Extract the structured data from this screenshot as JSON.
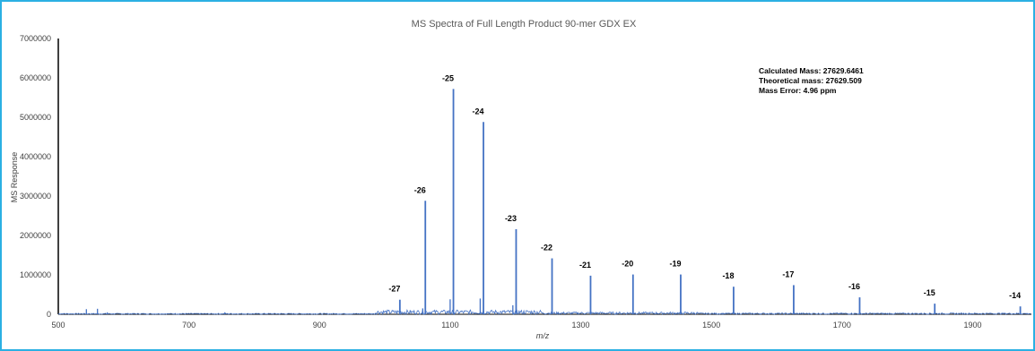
{
  "chart_data": {
    "type": "line",
    "title": "MS Spectra of Full Length Product 90-mer GDX EX",
    "xlabel": "m/z",
    "ylabel": "MS Response",
    "xlim": [
      500,
      1990
    ],
    "ylim": [
      0,
      7000000
    ],
    "x_ticks": [
      "500",
      "700",
      "900",
      "1100",
      "1300",
      "1500",
      "1700",
      "1900"
    ],
    "y_ticks": [
      "0",
      "1000000",
      "2000000",
      "3000000",
      "4000000",
      "5000000",
      "6000000",
      "7000000"
    ],
    "series_color": "#4472c4",
    "peaks": [
      {
        "label": "-27",
        "x": 1023,
        "y": 370000
      },
      {
        "label": "-26",
        "x": 1062,
        "y": 2880000
      },
      {
        "label": "-25",
        "x": 1105,
        "y": 5720000
      },
      {
        "label": "-24",
        "x": 1151,
        "y": 4880000
      },
      {
        "label": "-23",
        "x": 1201,
        "y": 2160000
      },
      {
        "label": "-22",
        "x": 1256,
        "y": 1420000
      },
      {
        "label": "-21",
        "x": 1315,
        "y": 980000
      },
      {
        "label": "-20",
        "x": 1380,
        "y": 1010000
      },
      {
        "label": "-19",
        "x": 1453,
        "y": 1010000
      },
      {
        "label": "-18",
        "x": 1534,
        "y": 700000
      },
      {
        "label": "-17",
        "x": 1626,
        "y": 740000
      },
      {
        "label": "-16",
        "x": 1727,
        "y": 430000
      },
      {
        "label": "-15",
        "x": 1842,
        "y": 270000
      },
      {
        "label": "-14",
        "x": 1973,
        "y": 200000
      }
    ],
    "minor_peaks": [
      {
        "x": 543,
        "y": 130000
      },
      {
        "x": 560,
        "y": 140000
      },
      {
        "x": 575,
        "y": 50000
      },
      {
        "x": 755,
        "y": 50000
      },
      {
        "x": 1058,
        "y": 150000
      },
      {
        "x": 1100,
        "y": 380000
      },
      {
        "x": 1146,
        "y": 400000
      },
      {
        "x": 1196,
        "y": 230000
      }
    ],
    "annotation": [
      "Calculated Mass: 27629.6461",
      "Theoretical mass: 27629.509",
      "Mass Error: 4.96 ppm"
    ]
  }
}
